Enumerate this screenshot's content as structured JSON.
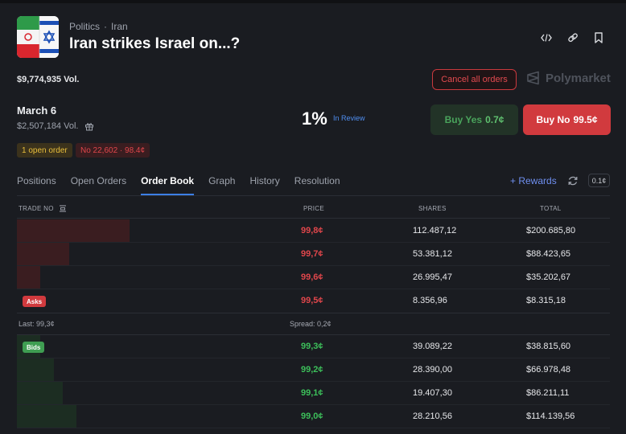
{
  "header": {
    "category": "Politics",
    "subcategory": "Iran",
    "title": "Iran strikes Israel on...?",
    "volume": "$9,774,935 Vol."
  },
  "actions": {
    "cancel_all": "Cancel all orders",
    "brand": "Polymarket"
  },
  "market": {
    "date": "March 6",
    "volume": "$2,507,184 Vol.",
    "probability": "1%",
    "status": "In Review",
    "buy_yes_label": "Buy Yes",
    "buy_yes_price": "0.7¢",
    "buy_no_label": "Buy No",
    "buy_no_price": "99.5¢",
    "open_orders": "1 open order",
    "position": "No 22,602 · 98.4¢"
  },
  "tabs": [
    {
      "label": "Positions"
    },
    {
      "label": "Open Orders"
    },
    {
      "label": "Order Book",
      "active": true
    },
    {
      "label": "Graph"
    },
    {
      "label": "History"
    },
    {
      "label": "Resolution"
    }
  ],
  "rewards": {
    "label": "+ Rewards",
    "tick": "0.1¢"
  },
  "orderbook": {
    "columns": {
      "trade": "TRADE NO",
      "price": "PRICE",
      "shares": "SHARES",
      "total": "TOTAL"
    },
    "asks_label": "Asks",
    "bids_label": "Bids",
    "asks": [
      {
        "price": "99,8¢",
        "shares": "112.487,12",
        "total": "$200.685,80",
        "depth": 0.19
      },
      {
        "price": "99,7¢",
        "shares": "53.381,12",
        "total": "$88.423,65",
        "depth": 0.088
      },
      {
        "price": "99,6¢",
        "shares": "26.995,47",
        "total": "$35.202,67",
        "depth": 0.04
      },
      {
        "price": "99,5¢",
        "shares": "8.356,96",
        "total": "$8.315,18",
        "depth": 0.0
      }
    ],
    "last": "Last: 99,3¢",
    "spread": "Spread: 0,2¢",
    "bids": [
      {
        "price": "99,3¢",
        "shares": "39.089,22",
        "total": "$38.815,60",
        "depth": 0.04
      },
      {
        "price": "99,2¢",
        "shares": "28.390,00",
        "total": "$66.978,48",
        "depth": 0.062
      },
      {
        "price": "99,1¢",
        "shares": "19.407,30",
        "total": "$86.211,11",
        "depth": 0.077
      },
      {
        "price": "99,0¢",
        "shares": "28.210,56",
        "total": "$114.139,56",
        "depth": 0.1
      }
    ]
  },
  "colors": {
    "background": "#1a1c21",
    "ask": "#e0464b",
    "bid": "#3cbf5a",
    "accent": "#3c7fe6"
  }
}
